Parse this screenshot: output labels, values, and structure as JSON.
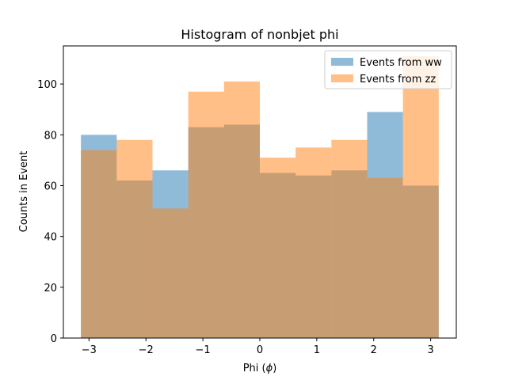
{
  "chart_data": {
    "type": "bar",
    "title": "Histogram of nonbjet phi",
    "xlabel": "Phi ($\\phi$)",
    "xlabel_main": "Phi (",
    "xlabel_symbol": "ϕ",
    "xlabel_end": ")",
    "ylabel": "Counts in Event",
    "xlim": [
      -3.45,
      3.45
    ],
    "ylim": [
      0,
      115
    ],
    "xticks": [
      -3,
      -2,
      -1,
      0,
      1,
      2,
      3
    ],
    "xtick_labels": [
      "−3",
      "−2",
      "−1",
      "0",
      "1",
      "2",
      "3"
    ],
    "yticks": [
      0,
      20,
      40,
      60,
      80,
      100
    ],
    "yticks_labels": [
      "0",
      "20",
      "40",
      "60",
      "80",
      "100"
    ],
    "bin_edges": [
      -3.1416,
      -2.5133,
      -1.885,
      -1.2566,
      -0.6283,
      0.0,
      0.6283,
      1.2566,
      1.885,
      2.5133,
      3.1416
    ],
    "legend_position": "top-right",
    "series": [
      {
        "name": "Events from ww",
        "color": "#1f77b4",
        "alpha": 0.5,
        "values": [
          80,
          62,
          66,
          83,
          84,
          65,
          64,
          66,
          89,
          60
        ]
      },
      {
        "name": "Events from zz",
        "color": "#ff7f0e",
        "alpha": 0.5,
        "values": [
          74,
          78,
          51,
          97,
          101,
          71,
          75,
          78,
          63,
          111
        ]
      }
    ]
  }
}
